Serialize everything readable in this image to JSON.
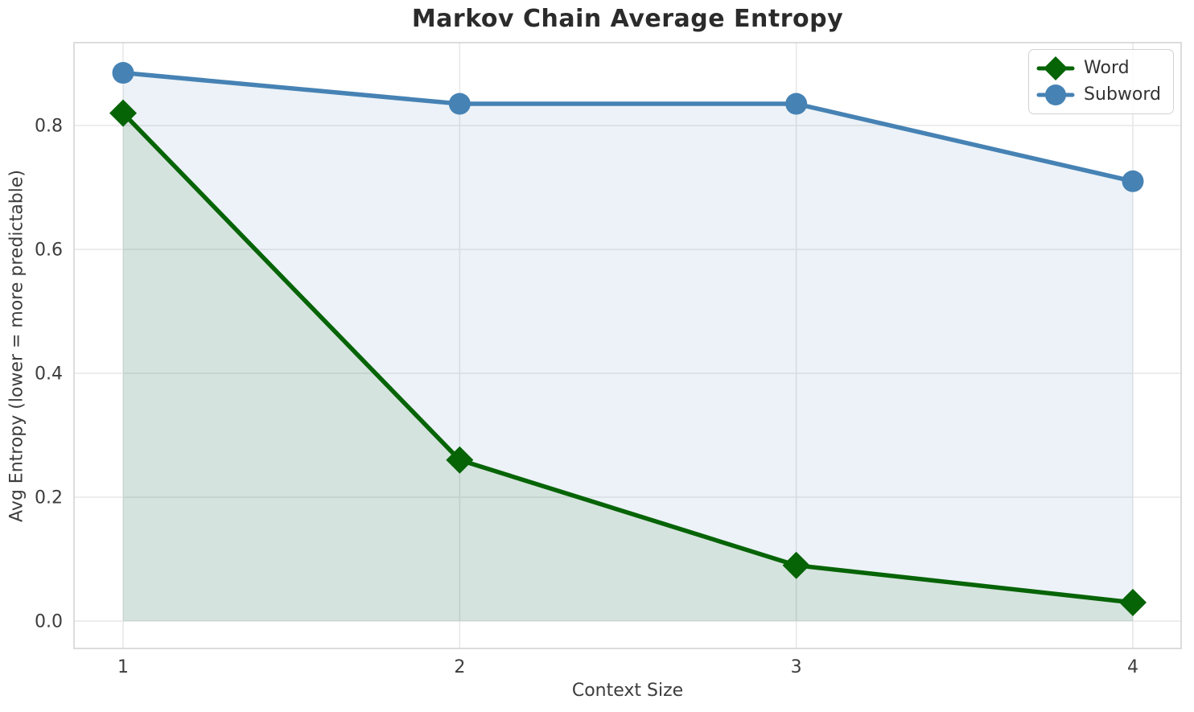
{
  "chart_data": {
    "type": "line",
    "title": "Markov Chain Average Entropy",
    "xlabel": "Context Size",
    "ylabel": "Avg Entropy (lower = more predictable)",
    "x": [
      1,
      2,
      3,
      4
    ],
    "xticks": [
      "1",
      "2",
      "3",
      "4"
    ],
    "yticks": [
      "0.0",
      "0.2",
      "0.4",
      "0.6",
      "0.8"
    ],
    "xlim": [
      0.85,
      4.15
    ],
    "ylim": [
      -0.045,
      0.935
    ],
    "grid": true,
    "legend_position": "upper right",
    "series": [
      {
        "name": "Word",
        "color": "#066406",
        "marker": "diamond",
        "fill_under": true,
        "fill_opacity": 0.1,
        "values": [
          0.82,
          0.26,
          0.09,
          0.03
        ]
      },
      {
        "name": "Subword",
        "color": "#4682b4",
        "marker": "circle",
        "fill_under": true,
        "fill_opacity": 0.1,
        "values": [
          0.885,
          0.835,
          0.835,
          0.71
        ]
      }
    ]
  }
}
